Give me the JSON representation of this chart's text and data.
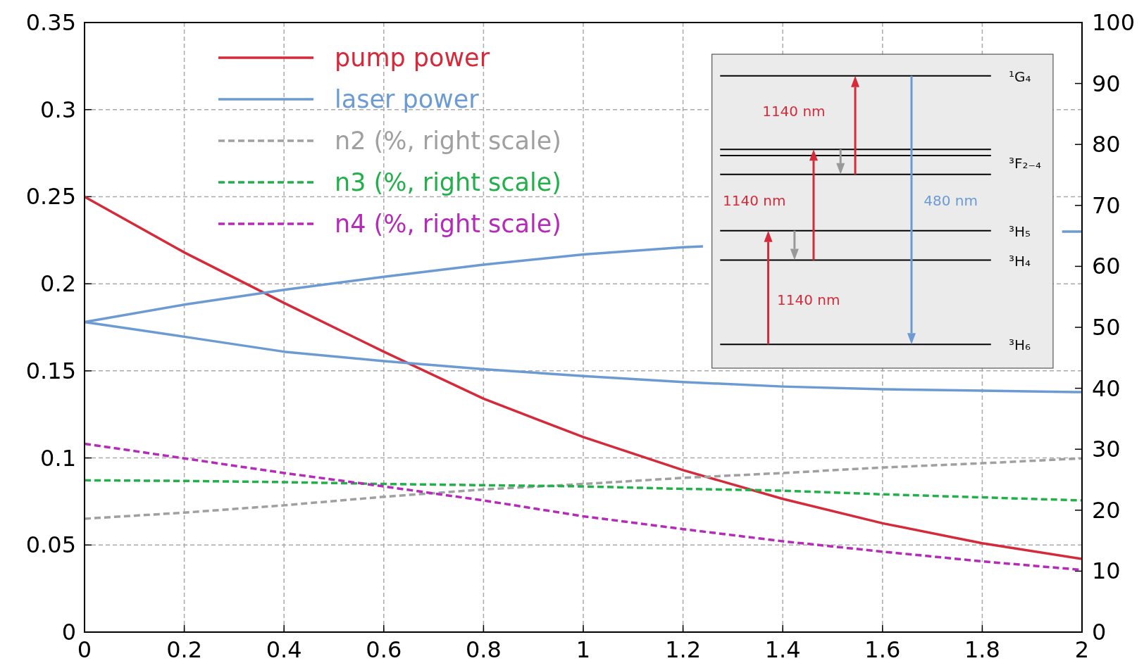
{
  "chart_data": {
    "type": "line",
    "xlim": [
      0,
      2
    ],
    "xticks": [
      0,
      0.2,
      0.4,
      0.6,
      0.8,
      1,
      1.2,
      1.4,
      1.6,
      1.8,
      2
    ],
    "ylim": [
      0,
      0.35
    ],
    "yticks": [
      0,
      0.05,
      0.1,
      0.15,
      0.2,
      0.25,
      0.3,
      0.35
    ],
    "y2lim": [
      0,
      100
    ],
    "y2ticks": [
      0,
      10,
      20,
      30,
      40,
      50,
      60,
      70,
      80,
      90,
      100
    ],
    "grid": true,
    "legend": "top left",
    "series": [
      {
        "name": "pump power",
        "color": "#d42a3a",
        "line_style": "solid",
        "x": [
          0,
          0.2,
          0.4,
          0.6,
          0.8,
          1,
          1.2,
          1.4,
          1.6,
          1.8,
          2
        ],
        "values": [
          0.25,
          0.218,
          0.189,
          0.161,
          0.134,
          0.112,
          0.093,
          0.0765,
          0.0625,
          0.051,
          0.042
        ]
      },
      {
        "name": "laser power",
        "color": "#6b9bd2",
        "line_style": "solid",
        "x": [
          0,
          0.2,
          0.4,
          0.6,
          0.8,
          1,
          1.2,
          1.24,
          1.6,
          1.96,
          2
        ],
        "values": [
          0.178,
          0.188,
          0.1965,
          0.204,
          0.211,
          0.2168,
          0.221,
          0.2215,
          null,
          0.23,
          0.23
        ]
      },
      {
        "color": "#6b9bd2",
        "line_style": "solid",
        "x": [
          0,
          0.2,
          0.4,
          0.6,
          0.8,
          1,
          1.2,
          1.4,
          1.6,
          1.8,
          2
        ],
        "values": [
          0.178,
          0.1696,
          0.161,
          0.1556,
          0.151,
          0.147,
          0.1436,
          0.141,
          0.1394,
          0.1386,
          0.1378
        ]
      },
      {
        "name": "n2 (%, right scale)",
        "color": "#a0a0a0",
        "line_style": "dashed",
        "axis": "y2",
        "x": [
          0,
          0.2,
          0.4,
          0.6,
          0.8,
          1,
          1.2,
          1.4,
          1.6,
          1.8,
          2
        ],
        "values": [
          18.6,
          19.6,
          20.8,
          22.2,
          23.4,
          24.3,
          25.3,
          26.1,
          27,
          27.7,
          28.5
        ]
      },
      {
        "name": "n3 (%, right scale)",
        "color": "#22b04a",
        "line_style": "dashed",
        "axis": "y2",
        "x": [
          0,
          0.2,
          0.4,
          0.6,
          0.8,
          1,
          1.2,
          1.4,
          1.6,
          1.8,
          2
        ],
        "values": [
          24.9,
          24.8,
          24.6,
          24.3,
          24.1,
          23.9,
          23.5,
          23.2,
          22.6,
          22.1,
          21.6
        ]
      },
      {
        "name": "n4 (%, right scale)",
        "color": "#b52ab8",
        "line_style": "dashed",
        "axis": "y2",
        "x": [
          0,
          0.2,
          0.4,
          0.6,
          0.8,
          1,
          1.2,
          1.4,
          1.6,
          1.8,
          2
        ],
        "values": [
          30.9,
          28.5,
          26.1,
          23.9,
          21.6,
          19,
          16.9,
          14.9,
          13.2,
          11.6,
          10.2
        ]
      }
    ],
    "annotations": [
      "1140 nm",
      "1140 nm",
      "480 nm",
      "1140 nm",
      "¹G₄",
      "³F₂₋₄",
      "³H₅",
      "³H₄",
      "³H₆"
    ]
  }
}
